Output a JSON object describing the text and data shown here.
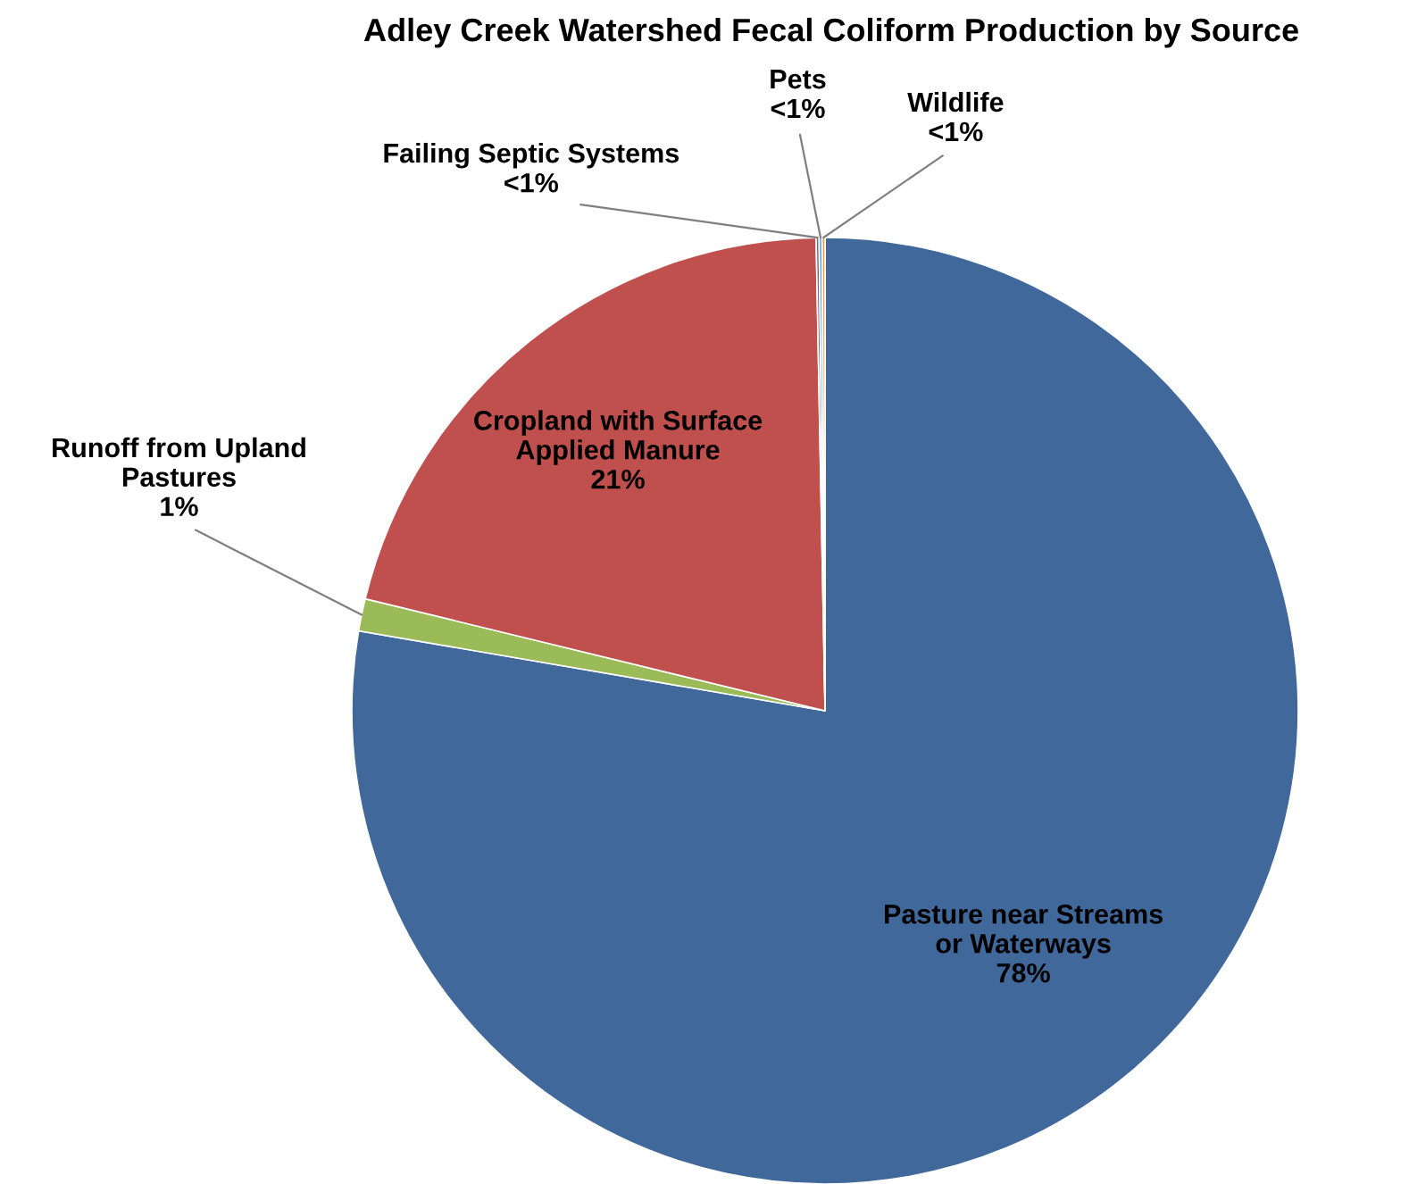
{
  "chart_data": {
    "type": "pie",
    "title": "Adley Creek Watershed Fecal Coliform Production by Source",
    "categories": [
      "Pasture near Streams\nor Waterways",
      "Runoff from Upland\nPastures",
      "Cropland with Surface\nApplied Manure",
      "Failing Septic Systems",
      "Pets",
      "Wildlife"
    ],
    "values": [
      77.7,
      1.1,
      20.9,
      0.1,
      0.1,
      0.1
    ],
    "value_labels": [
      "78%",
      "1%",
      "21%",
      "<1%",
      "<1%",
      "<1%"
    ],
    "colors": [
      "#41689b",
      "#9bbb59",
      "#c0504d",
      "#7f6084",
      "#4bacc6",
      "#f79646"
    ],
    "legend": false
  }
}
